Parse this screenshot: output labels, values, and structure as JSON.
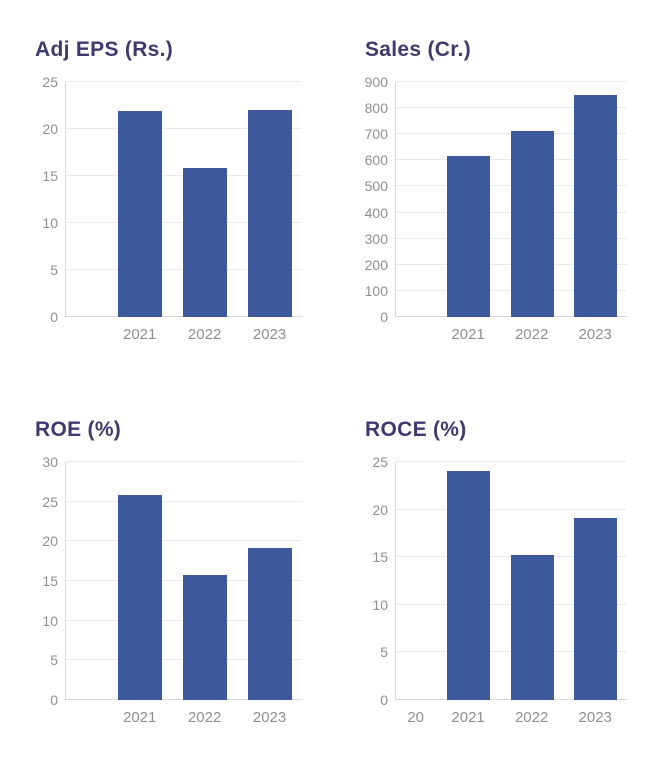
{
  "colors": {
    "bar": "#3c5a9b",
    "title": "#3e3a6e",
    "tick": "#8f8f8f",
    "grid": "#e9e9e9",
    "axis": "#d7d7d7",
    "background": "#ffffff"
  },
  "chart_data": [
    {
      "type": "bar",
      "title": "Adj EPS (Rs.)",
      "categories": [
        "",
        "2021",
        "2022",
        "2023"
      ],
      "values": [
        null,
        21.9,
        15.9,
        22.0
      ],
      "xlabel": "",
      "ylabel": "",
      "ylim": [
        0,
        25
      ],
      "yticks": [
        0,
        5,
        10,
        15,
        20,
        25
      ],
      "grid": true,
      "legend": "none"
    },
    {
      "type": "bar",
      "title": "Sales (Cr.)",
      "categories": [
        "",
        "2021",
        "2022",
        "2023"
      ],
      "values": [
        null,
        615,
        712,
        850
      ],
      "xlabel": "",
      "ylabel": "",
      "ylim": [
        0,
        900
      ],
      "yticks": [
        0,
        100,
        200,
        300,
        400,
        500,
        600,
        700,
        800,
        900
      ],
      "grid": true,
      "legend": "none"
    },
    {
      "type": "bar",
      "title": "ROE (%)",
      "categories": [
        "",
        "2021",
        "2022",
        "2023"
      ],
      "values": [
        null,
        25.8,
        15.8,
        19.2
      ],
      "xlabel": "",
      "ylabel": "",
      "ylim": [
        0,
        30
      ],
      "yticks": [
        0,
        5,
        10,
        15,
        20,
        25,
        30
      ],
      "grid": true,
      "legend": "none"
    },
    {
      "type": "bar",
      "title": "ROCE (%)",
      "categories": [
        "20",
        "2021",
        "2022",
        "2023"
      ],
      "values": [
        null,
        24.1,
        15.2,
        19.1
      ],
      "xlabel": "",
      "ylabel": "",
      "ylim": [
        0,
        25
      ],
      "yticks": [
        0,
        5,
        10,
        15,
        20,
        25
      ],
      "grid": true,
      "legend": "none"
    }
  ]
}
